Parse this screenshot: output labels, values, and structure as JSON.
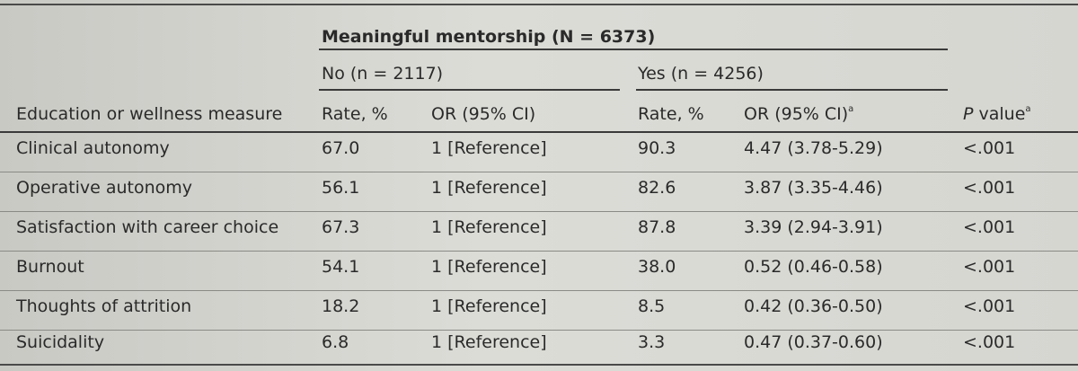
{
  "table": {
    "group_title": "Meaningful mentorship (N = 6373)",
    "sub_no": "No (n = 2117)",
    "sub_yes": "Yes (n = 4256)",
    "headers": {
      "measure": "Education or wellness measure",
      "no_rate": "Rate, %",
      "no_or": "OR (95% CI)",
      "yes_rate": "Rate, %",
      "yes_or": "OR (95% CI)",
      "yes_or_sup": "a",
      "p_value_italic": "P",
      "p_value_rest": " value",
      "p_value_sup": "a"
    },
    "rows": [
      {
        "measure": "Clinical autonomy",
        "no_rate": "67.0",
        "no_or": "1 [Reference]",
        "yes_rate": "90.3",
        "yes_or": "4.47 (3.78-5.29)",
        "p": "<.001"
      },
      {
        "measure": "Operative autonomy",
        "no_rate": "56.1",
        "no_or": "1 [Reference]",
        "yes_rate": "82.6",
        "yes_or": "3.87 (3.35-4.46)",
        "p": "<.001"
      },
      {
        "measure": "Satisfaction with career choice",
        "no_rate": "67.3",
        "no_or": "1 [Reference]",
        "yes_rate": "87.8",
        "yes_or": "3.39 (2.94-3.91)",
        "p": "<.001"
      },
      {
        "measure": "Burnout",
        "no_rate": "54.1",
        "no_or": "1 [Reference]",
        "yes_rate": "38.0",
        "yes_or": "0.52 (0.46-0.58)",
        "p": "<.001"
      },
      {
        "measure": "Thoughts of attrition",
        "no_rate": "18.2",
        "no_or": "1 [Reference]",
        "yes_rate": "8.5",
        "yes_or": "0.42 (0.36-0.50)",
        "p": "<.001"
      },
      {
        "measure": "Suicidality",
        "no_rate": "6.8",
        "no_or": "1 [Reference]",
        "yes_rate": "3.3",
        "yes_or": "0.47 (0.37-0.60)",
        "p": "<.001"
      }
    ]
  }
}
